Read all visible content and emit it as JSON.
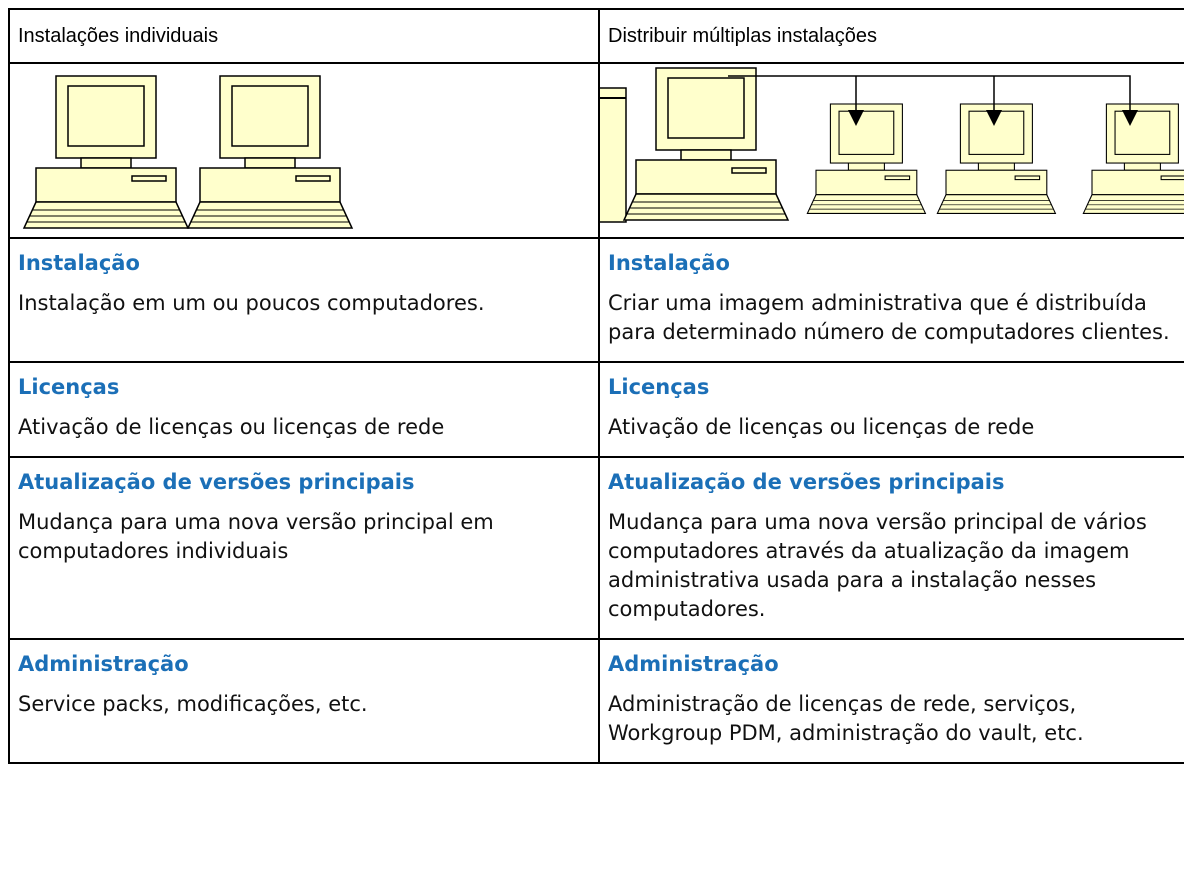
{
  "table": {
    "header": [
      "Instalações individuais",
      "Distribuir múltiplas instalações"
    ],
    "rows": [
      [
        {
          "title": "Instalação",
          "text": "Instalação em um ou poucos computadores."
        },
        {
          "title": "Instalação",
          "text": "Criar uma imagem administrativa que é distribuída para determinado número de computadores clientes."
        }
      ],
      [
        {
          "title": "Licenças",
          "text": "Ativação de licenças ou licenças de rede"
        },
        {
          "title": "Licenças",
          "text": "Ativação de licenças ou licenças de rede"
        }
      ],
      [
        {
          "title": "Atualização de versões principais",
          "text": "Mudança para uma nova versão principal em computadores individuais"
        },
        {
          "title": "Atualização de versões principais",
          "text": "Mudança para uma nova versão principal de vários computadores através da atualização da imagem administrativa usada para a instalação nesses computadores."
        }
      ],
      [
        {
          "title": "Administração",
          "text": "Service packs, modificações, etc."
        },
        {
          "title": "Administração",
          "text": "Administração de licenças de rede, serviços, Workgroup PDM, administração do vault, etc."
        }
      ]
    ]
  }
}
